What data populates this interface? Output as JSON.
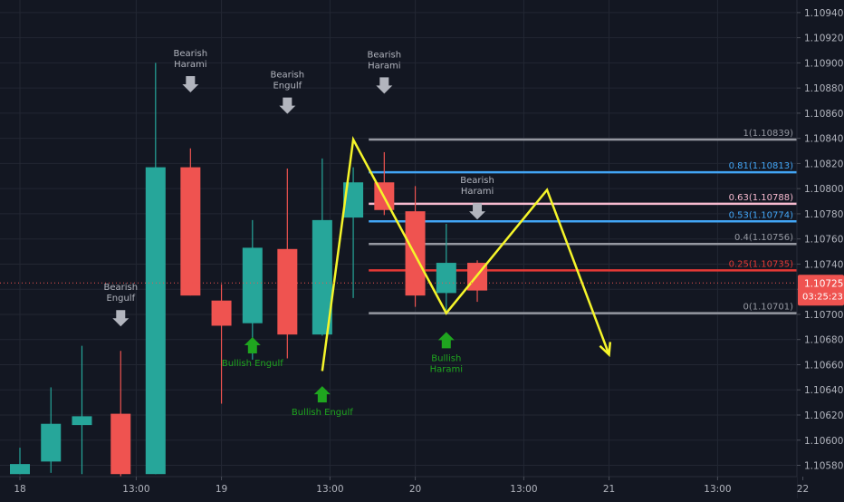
{
  "chart_data": {
    "type": "candlestick",
    "instrument_scale": "price",
    "colors": {
      "background": "#131722",
      "grid": "#232733",
      "bull": "#26a69a",
      "bear": "#ef5350",
      "axis_text": "#b2b5be",
      "arrow_gray": "#b2b5be",
      "arrow_green": "#1fa51f",
      "pattern_green": "#1fa51f",
      "yellow_path": "#f5f52a",
      "price_tag": "#ef5350"
    },
    "y_axis": {
      "min": 1.10571,
      "max": 1.1095,
      "ticks": [
        {
          "value": 1.1094,
          "label": "1.10940"
        },
        {
          "value": 1.1092,
          "label": "1.10920"
        },
        {
          "value": 1.109,
          "label": "1.10900"
        },
        {
          "value": 1.1088,
          "label": "1.10880"
        },
        {
          "value": 1.1086,
          "label": "1.10860"
        },
        {
          "value": 1.1084,
          "label": "1.10840"
        },
        {
          "value": 1.1082,
          "label": "1.10820"
        },
        {
          "value": 1.108,
          "label": "1.10800"
        },
        {
          "value": 1.1078,
          "label": "1.10780"
        },
        {
          "value": 1.1076,
          "label": "1.10760"
        },
        {
          "value": 1.1074,
          "label": "1.10740"
        },
        {
          "value": 1.1072,
          "label": "1.10720"
        },
        {
          "value": 1.107,
          "label": "1.10700"
        },
        {
          "value": 1.1068,
          "label": "1.10680"
        },
        {
          "value": 1.1066,
          "label": "1.10660"
        },
        {
          "value": 1.1064,
          "label": "1.10640"
        },
        {
          "value": 1.1062,
          "label": "1.10620"
        },
        {
          "value": 1.106,
          "label": "1.10600"
        },
        {
          "value": 1.1058,
          "label": "1.10580"
        }
      ]
    },
    "x_axis": {
      "min": 0,
      "max": 25,
      "ticks": [
        {
          "value": 0,
          "label": "18"
        },
        {
          "value": 3,
          "label": "13:00"
        },
        {
          "value": 5.2,
          "label": "19"
        },
        {
          "value": 8,
          "label": "13:00"
        },
        {
          "value": 10.2,
          "label": "20"
        },
        {
          "value": 13,
          "label": "13:00"
        },
        {
          "value": 15.2,
          "label": "21"
        },
        {
          "value": 18,
          "label": "13:00"
        },
        {
          "value": 20.2,
          "label": "22"
        }
      ]
    },
    "candles": [
      {
        "x": 0,
        "open": 1.10573,
        "high": 1.10594,
        "low": 1.10573,
        "close": 1.10581
      },
      {
        "x": 0.8,
        "open": 1.10583,
        "high": 1.10642,
        "low": 1.10574,
        "close": 1.10613
      },
      {
        "x": 1.6,
        "open": 1.10612,
        "high": 1.10675,
        "low": 1.10573,
        "close": 1.10619
      },
      {
        "x": 2.6,
        "open": 1.10621,
        "high": 1.10671,
        "low": 1.10571,
        "close": 1.10573
      },
      {
        "x": 3.5,
        "open": 1.10573,
        "high": 1.109,
        "low": 1.10573,
        "close": 1.10817
      },
      {
        "x": 4.4,
        "open": 1.10817,
        "high": 1.10832,
        "low": 1.10715,
        "close": 1.10715
      },
      {
        "x": 5.2,
        "open": 1.10711,
        "high": 1.10724,
        "low": 1.10629,
        "close": 1.10691
      },
      {
        "x": 6.0,
        "open": 1.10693,
        "high": 1.10775,
        "low": 1.10664,
        "close": 1.10753
      },
      {
        "x": 6.9,
        "open": 1.10752,
        "high": 1.10816,
        "low": 1.10665,
        "close": 1.10684
      },
      {
        "x": 7.8,
        "open": 1.10684,
        "high": 1.10824,
        "low": 1.10683,
        "close": 1.10775
      },
      {
        "x": 8.6,
        "open": 1.10777,
        "high": 1.10817,
        "low": 1.10713,
        "close": 1.10805
      },
      {
        "x": 9.4,
        "open": 1.10805,
        "high": 1.10829,
        "low": 1.10779,
        "close": 1.10783
      },
      {
        "x": 10.2,
        "open": 1.10782,
        "high": 1.10802,
        "low": 1.10706,
        "close": 1.10715
      },
      {
        "x": 11.0,
        "open": 1.10717,
        "high": 1.10772,
        "low": 1.10703,
        "close": 1.10741
      },
      {
        "x": 11.8,
        "open": 1.10741,
        "high": 1.10743,
        "low": 1.1071,
        "close": 1.10719
      }
    ],
    "patterns": [
      {
        "label_lines": [
          "Bearish",
          "Engulf"
        ],
        "x": 2.6,
        "y": 1.10702,
        "kind": "bear"
      },
      {
        "label_lines": [
          "Bearish",
          "Harami"
        ],
        "x": 4.4,
        "y": 1.10888,
        "kind": "bear"
      },
      {
        "label_lines": [
          "Bearish",
          "Engulf"
        ],
        "x": 6.9,
        "y": 1.10871,
        "kind": "bear"
      },
      {
        "label_lines": [
          "Bearish",
          "Harami"
        ],
        "x": 9.4,
        "y": 1.10887,
        "kind": "bear"
      },
      {
        "label_lines": [
          "Bearish",
          "Harami"
        ],
        "x": 11.8,
        "y": 1.10787,
        "kind": "bear"
      },
      {
        "label_lines": [
          "Bullish Engulf"
        ],
        "x": 6.0,
        "y": 1.10682,
        "kind": "bull"
      },
      {
        "label_lines": [
          "Bullish Engulf"
        ],
        "x": 7.8,
        "y": 1.10643,
        "kind": "bull"
      },
      {
        "label_lines": [
          "Bullish",
          "Harami"
        ],
        "x": 11.0,
        "y": 1.10686,
        "kind": "bull"
      }
    ],
    "fib_levels": [
      {
        "label": "1(1.10839)",
        "value": 1.10839,
        "color": "#9598a1"
      },
      {
        "label": "0.81(1.10813)",
        "value": 1.10813,
        "color": "#42a5f5"
      },
      {
        "label": "0.63(1.10788)",
        "value": 1.10788,
        "color": "#f8bbd0"
      },
      {
        "label": "0.53(1.10774)",
        "value": 1.10774,
        "color": "#42a5f5"
      },
      {
        "label": "0.4(1.10756)",
        "value": 1.10756,
        "color": "#9598a1"
      },
      {
        "label": "0.25(1.10735)",
        "value": 1.10735,
        "color": "#e53935"
      },
      {
        "label": "0(1.10701)",
        "value": 1.10701,
        "color": "#9598a1"
      }
    ],
    "fib_x_start": 9.0,
    "path_points": [
      {
        "x": 7.8,
        "y": 1.10655
      },
      {
        "x": 8.6,
        "y": 1.10839
      },
      {
        "x": 11.0,
        "y": 1.10701
      },
      {
        "x": 13.6,
        "y": 1.10799
      },
      {
        "x": 15.2,
        "y": 1.10668
      }
    ],
    "current_price": {
      "value": 1.10725,
      "label": "1.10725",
      "countdown": "03:25:23"
    }
  }
}
